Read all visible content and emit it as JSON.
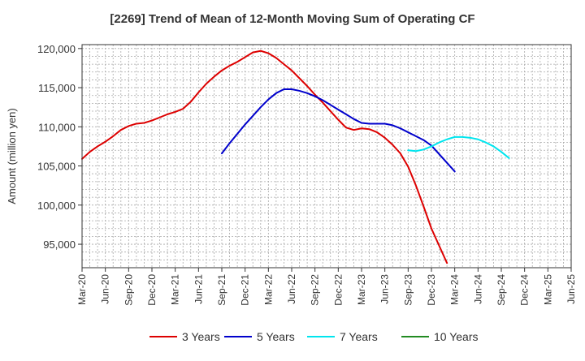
{
  "chart_data": {
    "type": "line",
    "title": "[2269]  Trend of Mean of 12-Month Moving Sum of Operating CF",
    "xlabel": "",
    "ylabel": "Amount (million yen)",
    "ylim": [
      92000,
      120500
    ],
    "yticks": [
      95000,
      100000,
      105000,
      110000,
      115000,
      120000
    ],
    "ytick_labels": [
      "95,000",
      "100,000",
      "105,000",
      "110,000",
      "115,000",
      "120,000"
    ],
    "x_range": [
      0,
      63
    ],
    "xtick_index": [
      0,
      3,
      6,
      9,
      12,
      15,
      18,
      21,
      24,
      27,
      30,
      33,
      36,
      39,
      42,
      45,
      48,
      51,
      54,
      57,
      60,
      63
    ],
    "xtick_labels": [
      "Mar-20",
      "Jun-20",
      "Sep-20",
      "Dec-20",
      "Mar-21",
      "Jun-21",
      "Sep-21",
      "Dec-21",
      "Mar-22",
      "Jun-22",
      "Sep-22",
      "Dec-22",
      "Mar-23",
      "Jun-23",
      "Sep-23",
      "Dec-23",
      "Mar-24",
      "Jun-24",
      "Sep-24",
      "Dec-24",
      "Mar-25",
      "Jun-25"
    ],
    "grid": true,
    "legend_position": "bottom",
    "series": [
      {
        "name": "3 Years",
        "color": "#dd0000",
        "start_index": 0,
        "values": [
          105900,
          106800,
          107500,
          108100,
          108800,
          109600,
          110100,
          110400,
          110500,
          110800,
          111200,
          111600,
          111900,
          112300,
          113200,
          114400,
          115500,
          116400,
          117200,
          117800,
          118300,
          118900,
          119500,
          119700,
          119400,
          118800,
          118000,
          117200,
          116200,
          115200,
          114100,
          113100,
          112000,
          110900,
          109900,
          109600,
          109800,
          109700,
          109300,
          108600,
          107700,
          106600,
          104900,
          102500,
          99800,
          97000,
          94800,
          92600
        ]
      },
      {
        "name": "5 Years",
        "color": "#0000cc",
        "start_index": 18,
        "values": [
          106600,
          107900,
          109100,
          110300,
          111400,
          112500,
          113500,
          114300,
          114800,
          114800,
          114600,
          114300,
          113900,
          113400,
          112800,
          112200,
          111600,
          111000,
          110500,
          110400,
          110400,
          110400,
          110200,
          109800,
          109300,
          108800,
          108300,
          107600,
          106500,
          105400,
          104300
        ]
      },
      {
        "name": "7 Years",
        "color": "#00e5ee",
        "start_index": 42,
        "values": [
          107000,
          106900,
          107100,
          107500,
          108000,
          108400,
          108700,
          108700,
          108600,
          108400,
          108000,
          107500,
          106800,
          106000
        ]
      },
      {
        "name": "10 Years",
        "color": "#228b22",
        "start_index": 0,
        "values": []
      }
    ]
  }
}
